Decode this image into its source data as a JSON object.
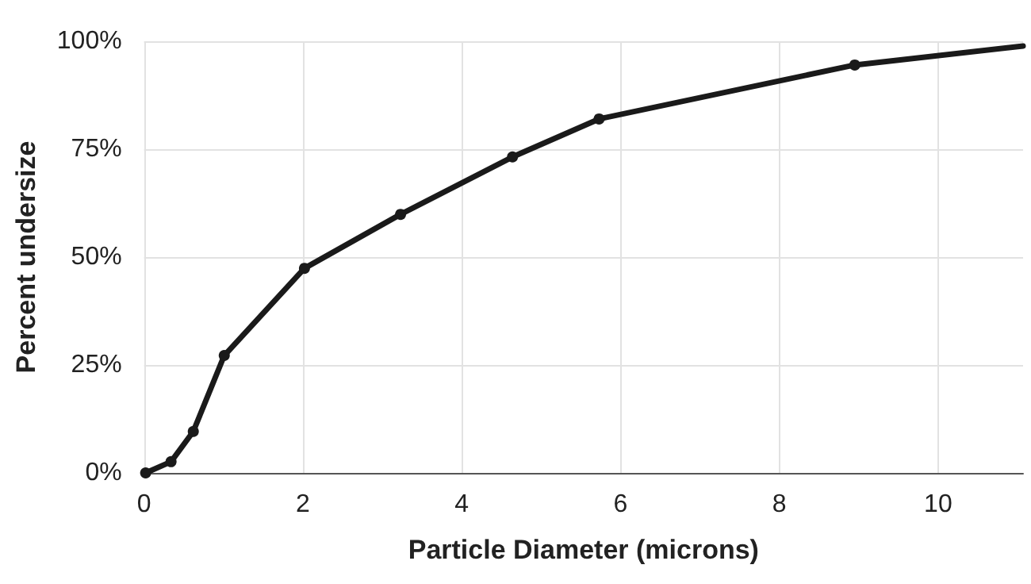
{
  "chart_data": {
    "type": "line",
    "xlabel": "Particle Diameter (microns)",
    "ylabel": "Percent undersize",
    "series": [
      {
        "color": "#1a1a1a",
        "x": [
          0.02,
          0.34,
          0.62,
          1.01,
          2.02,
          3.23,
          4.64,
          5.73,
          8.95,
          11.07
        ],
        "values": [
          0,
          2.6,
          9.6,
          27.2,
          47.4,
          59.9,
          73.2,
          82,
          94.5,
          98.9
        ]
      }
    ],
    "xlim": [
      0,
      11.07
    ],
    "xticks": [
      0,
      2,
      4,
      6,
      8,
      10
    ],
    "ylim": [
      0,
      100
    ],
    "yticks": [
      {
        "value": 0,
        "label": "0%"
      },
      {
        "value": 25,
        "label": "25%"
      },
      {
        "value": 50,
        "label": "50%"
      },
      {
        "value": 75,
        "label": "75%"
      },
      {
        "value": 100,
        "label": "100%"
      }
    ],
    "grid": true,
    "marker": "circle",
    "line_style": "solid"
  }
}
